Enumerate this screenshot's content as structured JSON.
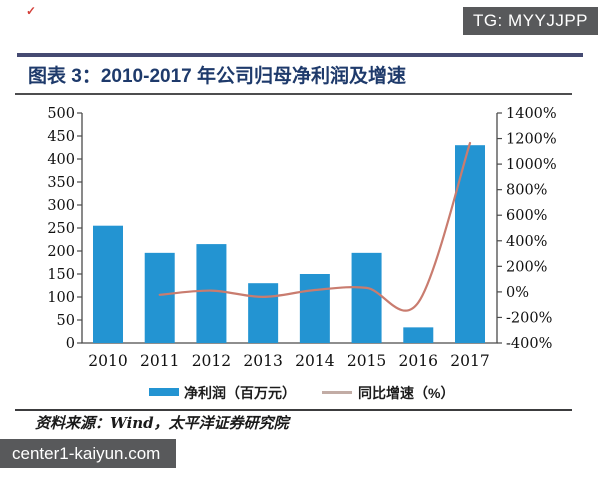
{
  "badge": {
    "text": "TG: MYYJJPP"
  },
  "corner_mark": "✓",
  "figure": {
    "title": "图表 3：2010-2017 年公司归母净利润及增速",
    "source": "资料来源：Wind，太平洋证券研究院"
  },
  "watermark": {
    "text": "center1-kaiyun.com"
  },
  "chart_data": {
    "type": "bar+line combo",
    "title": "2010-2017 年公司归母净利润及增速",
    "categories": [
      "2010",
      "2011",
      "2012",
      "2013",
      "2014",
      "2015",
      "2016",
      "2017"
    ],
    "series": [
      {
        "name": "净利润（百万元）",
        "type": "bar",
        "axis": "left",
        "color": "#2394d2",
        "values": [
          255,
          196,
          215,
          130,
          150,
          196,
          34,
          430
        ]
      },
      {
        "name": "同比增速（%）",
        "type": "line",
        "axis": "right",
        "color": "#c97c6f",
        "legend_color": "#c2aca5",
        "values": [
          null,
          -23,
          10,
          -39,
          15,
          31,
          -83,
          1165
        ]
      }
    ],
    "left_axis": {
      "min": 0,
      "max": 500,
      "step": 50,
      "suffix": ""
    },
    "right_axis": {
      "min": -400,
      "max": 1400,
      "step": 200,
      "suffix": "%"
    },
    "legend_position": "bottom",
    "grid": false,
    "axis_color": "#4a4a4a",
    "label_color": "#111111"
  }
}
